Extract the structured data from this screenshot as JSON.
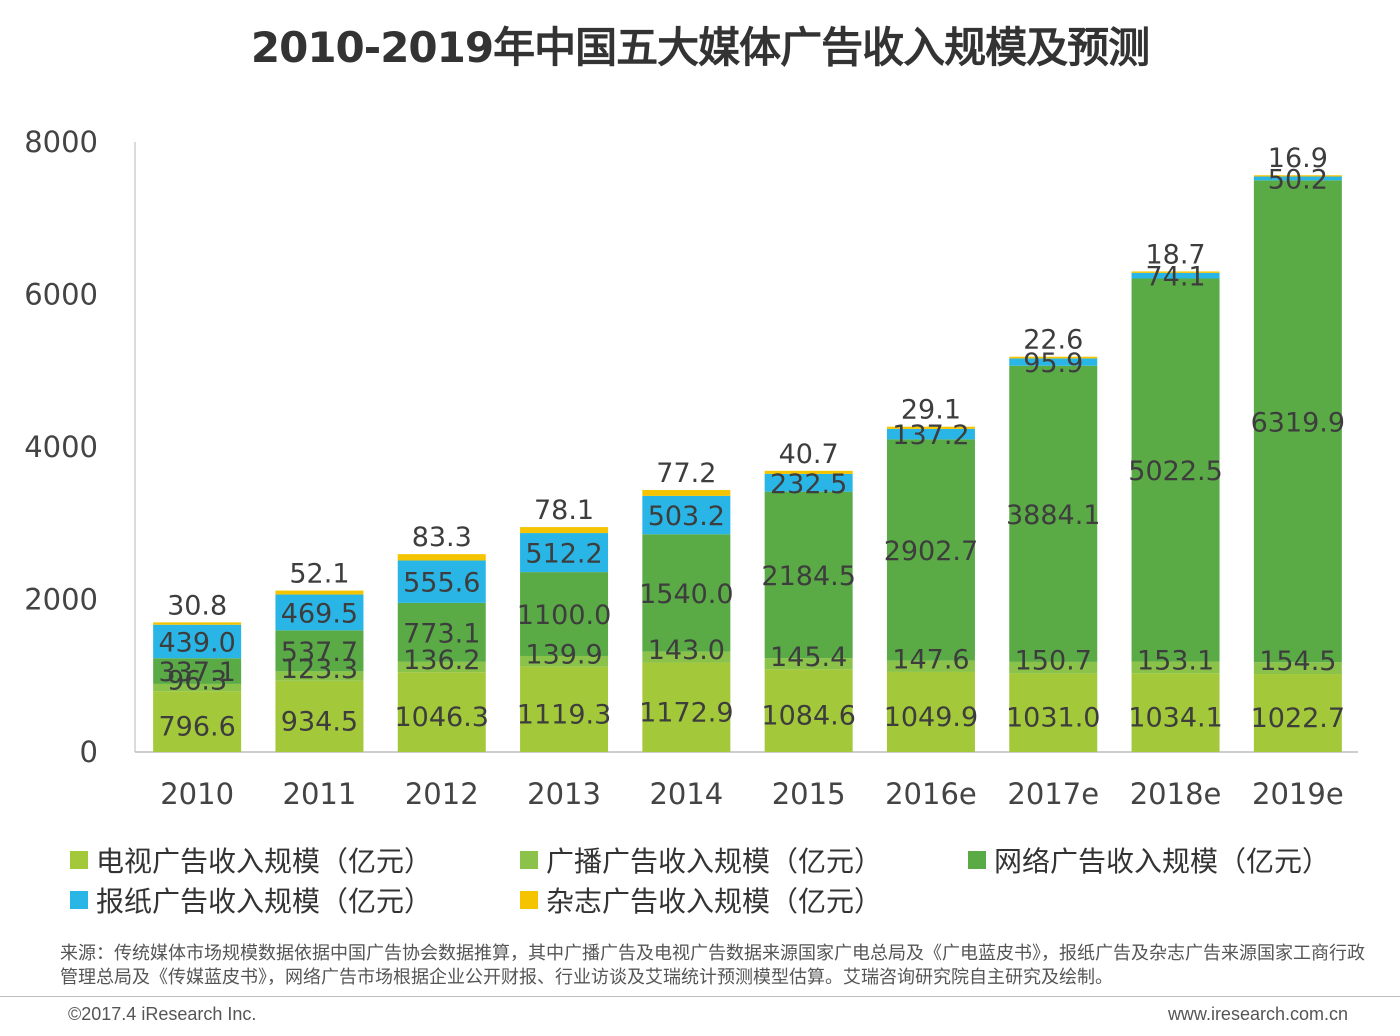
{
  "title": "2010-2019年中国五大媒体广告收入规模及预测",
  "chart_data": {
    "type": "bar",
    "stacked": true,
    "categories": [
      "2010",
      "2011",
      "2012",
      "2013",
      "2014",
      "2015",
      "2016e",
      "2017e",
      "2018e",
      "2019e"
    ],
    "series": [
      {
        "name": "电视广告收入规模（亿元）",
        "color": "#a3c93a",
        "values": [
          796.6,
          934.5,
          1046.3,
          1119.3,
          1172.9,
          1084.6,
          1049.9,
          1031.0,
          1034.1,
          1022.7
        ],
        "labels": [
          "796.6",
          "934.5",
          "1046.3",
          "1119.3",
          "1172.9",
          "1084.6",
          "1049.9",
          "1031.0",
          "1034.1",
          "1022.7"
        ]
      },
      {
        "name": "广播广告收入规模（亿元）",
        "color": "#8bc34a",
        "values": [
          96.3,
          123.3,
          136.2,
          139.9,
          143.0,
          145.4,
          147.6,
          150.7,
          153.1,
          154.5
        ],
        "labels": [
          "96.3",
          "123.3",
          "136.2",
          "139.9",
          "143.0",
          "145.4",
          "147.6",
          "150.7",
          "153.1",
          "154.5"
        ]
      },
      {
        "name": "网络广告收入规模（亿元）",
        "color": "#5aab46",
        "values": [
          337.1,
          537.7,
          773.1,
          1100.0,
          1540.0,
          2184.5,
          2902.7,
          3884.1,
          5022.5,
          6319.9
        ],
        "labels": [
          "337.1",
          "537.7",
          "773.1",
          "1100.0",
          "1540.0",
          "2184.5",
          "2902.7",
          "3884.1",
          "5022.5",
          "6319.9"
        ]
      },
      {
        "name": "报纸广告收入规模（亿元）",
        "color": "#29b6e6",
        "values": [
          439.0,
          469.5,
          555.6,
          512.2,
          503.2,
          232.5,
          137.2,
          95.9,
          74.1,
          50.2
        ],
        "labels": [
          "439.0",
          "469.5",
          "555.6",
          "512.2",
          "503.2",
          "232.5",
          "137.2",
          "95.9",
          "74.1",
          "50.2"
        ]
      },
      {
        "name": "杂志广告收入规模（亿元）",
        "color": "#f5c400",
        "values": [
          30.8,
          52.1,
          83.3,
          78.1,
          77.2,
          40.7,
          29.1,
          22.6,
          18.7,
          16.9
        ],
        "labels": [
          "30.8",
          "52.1",
          "83.3",
          "78.1",
          "77.2",
          "40.7",
          "29.1",
          "22.6",
          "18.7",
          "16.9"
        ]
      }
    ],
    "yticks": [
      "0",
      "2000",
      "4000",
      "6000",
      "8000"
    ],
    "ylim": [
      0,
      8000
    ],
    "grid": false,
    "legend_position": "bottom"
  },
  "legend": [
    {
      "label": "电视广告收入规模（亿元）",
      "color": "#a3c93a"
    },
    {
      "label": "广播广告收入规模（亿元）",
      "color": "#8bc34a"
    },
    {
      "label": "网络广告收入规模（亿元）",
      "color": "#5aab46"
    },
    {
      "label": "报纸广告收入规模（亿元）",
      "color": "#29b6e6"
    },
    {
      "label": "杂志广告收入规模（亿元）",
      "color": "#f5c400"
    }
  ],
  "source_text": "来源：传统媒体市场规模数据依据中国广告协会数据推算，其中广播广告及电视广告数据来源国家广电总局及《广电蓝皮书》，报纸广告及杂志广告来源国家工商行政管理总局及《传媒蓝皮书》，网络广告市场根据企业公开财报、行业访谈及艾瑞统计预测模型估算。艾瑞咨询研究院自主研究及绘制。",
  "copyright": "©2017.4 iResearch Inc.",
  "website": "www.iresearch.com.cn"
}
